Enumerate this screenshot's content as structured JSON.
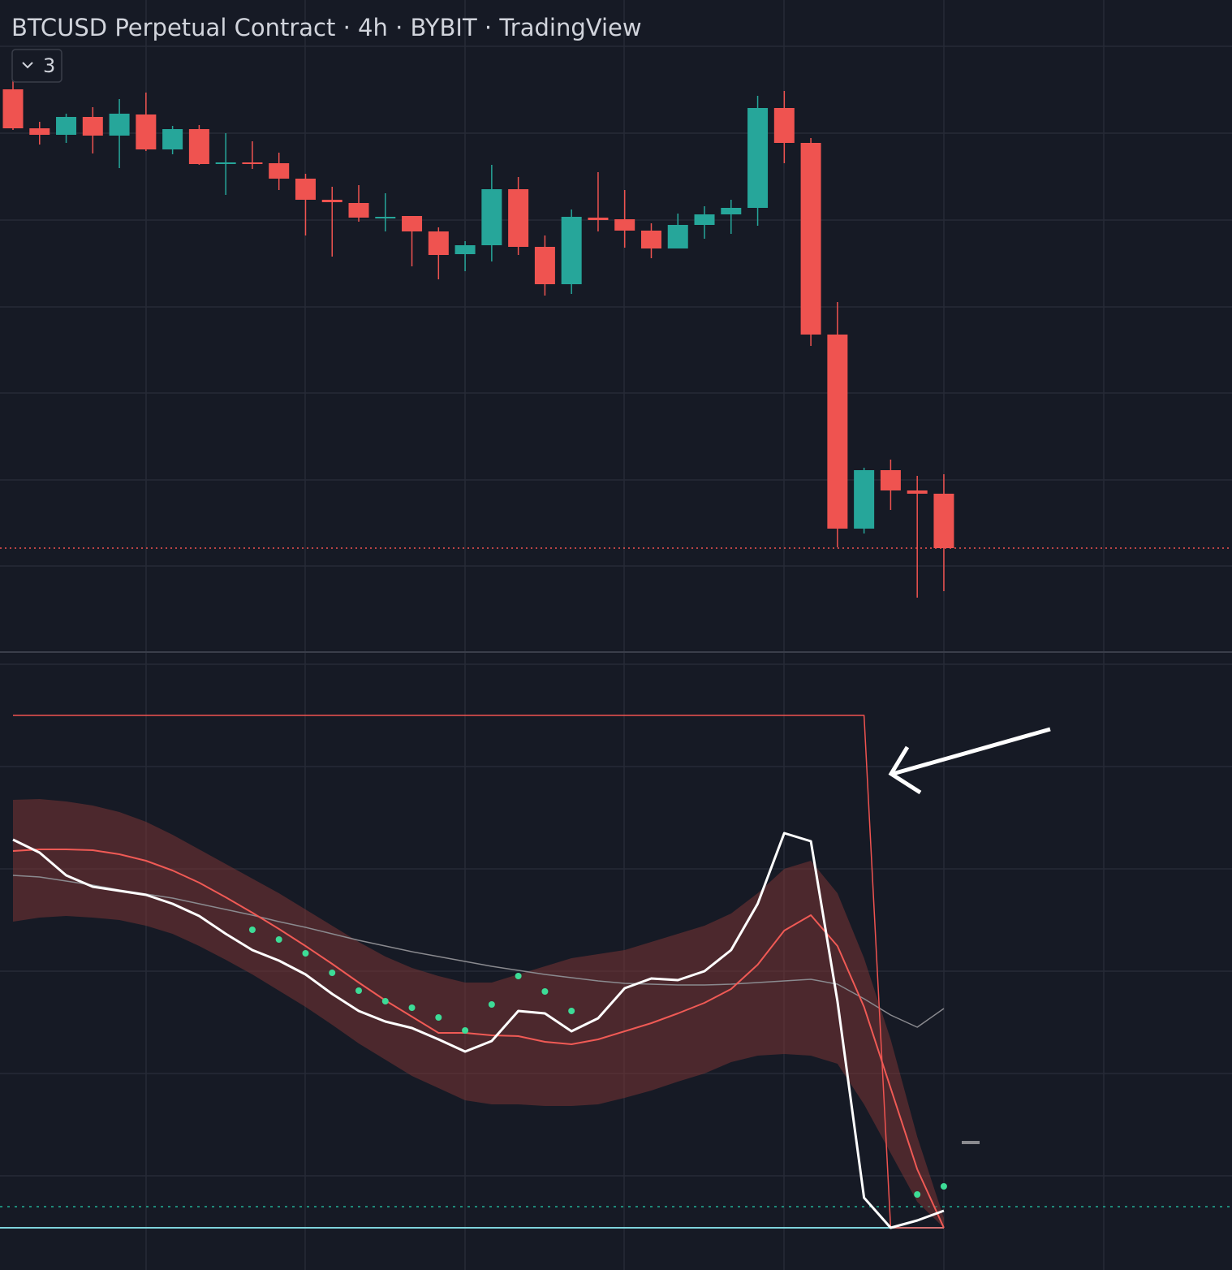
{
  "toolbar": {
    "collapse_label": "3"
  },
  "chart_data": [
    {
      "type": "candlestick",
      "title": "BTCUSD Perpetual Contract · 4h · BYBIT · TradingView",
      "up_color": "#26a69a",
      "down_color": "#ef5350",
      "ylim": [
        0,
        800
      ],
      "open": [
        690,
        642,
        634,
        656,
        633,
        659,
        616,
        641,
        599,
        600,
        599,
        580,
        554,
        550,
        532,
        534,
        515,
        487,
        498,
        567,
        496,
        450,
        532,
        530,
        516,
        494,
        523,
        536,
        544,
        667,
        624,
        388,
        149,
        221,
        196,
        192
      ],
      "high": [
        700,
        650,
        660,
        668,
        678,
        686,
        645,
        646,
        636,
        626,
        612,
        586,
        570,
        572,
        562,
        534,
        520,
        503,
        597,
        582,
        510,
        542,
        588,
        566,
        525,
        537,
        546,
        554,
        682,
        688,
        630,
        428,
        224,
        234,
        214,
        216
      ],
      "low": [
        640,
        622,
        624,
        611,
        593,
        614,
        610,
        597,
        560,
        592,
        566,
        510,
        484,
        527,
        515,
        472,
        456,
        466,
        478,
        486,
        436,
        438,
        515,
        495,
        482,
        494,
        506,
        512,
        522,
        599,
        374,
        126,
        143,
        172,
        64,
        72
      ],
      "close": [
        642,
        634,
        656,
        633,
        660,
        616,
        641,
        598,
        600,
        598,
        580,
        554,
        551,
        532,
        533,
        515,
        486,
        498,
        567,
        496,
        450,
        533,
        529,
        516,
        494,
        523,
        536,
        544,
        667,
        624,
        388,
        149,
        221,
        196,
        192,
        125
      ],
      "price_line_color": "#ef5350"
    },
    {
      "type": "line",
      "ylim": [
        0,
        720
      ],
      "bands": [
        {
          "color": "#7a3535",
          "upper": [
            535,
            536,
            533,
            528,
            520,
            508,
            492,
            474,
            456,
            438,
            420,
            400,
            380,
            360,
            342,
            328,
            318,
            310,
            310,
            320,
            330,
            340,
            345,
            350,
            360,
            370,
            380,
            395,
            420,
            450,
            460,
            420,
            340,
            240,
            120,
            20
          ],
          "lower": [
            385,
            390,
            392,
            390,
            387,
            380,
            370,
            355,
            338,
            320,
            300,
            280,
            258,
            235,
            215,
            195,
            180,
            165,
            160,
            160,
            158,
            158,
            160,
            168,
            177,
            188,
            198,
            212,
            220,
            222,
            220,
            210,
            160,
            100,
            40,
            8
          ]
        }
      ],
      "series": [
        {
          "color": "#8a8a8f",
          "width": 1.5,
          "values": [
            442,
            440,
            435,
            430,
            424,
            419,
            414,
            407,
            400,
            393,
            385,
            378,
            370,
            362,
            355,
            348,
            342,
            336,
            330,
            325,
            320,
            316,
            312,
            309,
            308,
            307,
            307,
            308,
            310,
            312,
            314,
            308,
            290,
            270,
            255,
            278
          ]
        },
        {
          "color": "#ef5350",
          "width": 1.5,
          "values": [
            639,
            639,
            639,
            639,
            639,
            639,
            639,
            639,
            639,
            639,
            639,
            639,
            639,
            639,
            639,
            639,
            639,
            639,
            639,
            639,
            639,
            639,
            639,
            639,
            639,
            639,
            639,
            639,
            639,
            639,
            639,
            639,
            639,
            8,
            8,
            8
          ]
        },
        {
          "color": "#f05a55",
          "width": 2,
          "values": [
            472,
            474,
            474,
            473,
            468,
            460,
            448,
            433,
            415,
            396,
            376,
            355,
            333,
            310,
            288,
            268,
            248,
            248,
            245,
            244,
            237,
            234,
            240,
            250,
            260,
            272,
            285,
            302,
            332,
            374,
            393,
            355,
            280,
            180,
            80,
            8
          ]
        },
        {
          "color": "#ffffff",
          "width": 3,
          "values": [
            486,
            470,
            442,
            428,
            423,
            418,
            407,
            392,
            370,
            350,
            337,
            320,
            296,
            275,
            262,
            254,
            240,
            225,
            238,
            275,
            272,
            250,
            266,
            303,
            315,
            313,
            324,
            350,
            407,
            494,
            484,
            287,
            45,
            8,
            17,
            29
          ]
        },
        {
          "color": "#3ddc97",
          "style": "dots",
          "values": [
            null,
            null,
            null,
            null,
            null,
            null,
            null,
            null,
            null,
            375,
            363,
            346,
            322,
            300,
            287,
            279,
            267,
            251,
            283,
            318,
            299,
            275,
            null,
            null,
            null,
            null,
            null,
            null,
            null,
            null,
            null,
            null,
            null,
            null,
            49,
            59
          ]
        }
      ],
      "hlines": [
        {
          "value": 8,
          "color": "#7fd3dc",
          "style": "solid"
        },
        {
          "value": 34,
          "color": "#1e8a7a",
          "style": "dotted"
        }
      ]
    }
  ]
}
